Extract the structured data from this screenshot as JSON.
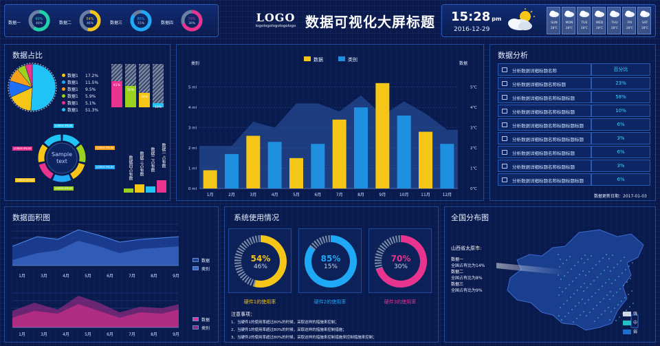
{
  "header": {
    "logo": "LOGO",
    "logo_sub": "logologologologologo",
    "title": "数据可视化大屏标题",
    "time": "15:28",
    "time_suffix": "pm",
    "date": "2016-12-29",
    "gauges": [
      {
        "label": "数据一",
        "pct": "60%",
        "sub": "40%",
        "color": "#1fd1a8"
      },
      {
        "label": "数据二",
        "pct": "54%",
        "sub": "46%",
        "color": "#f5c518"
      },
      {
        "label": "数据三",
        "pct": "85%",
        "sub": "15%",
        "color": "#1fa8f5"
      },
      {
        "label": "数据四",
        "pct": "70%",
        "sub": "30%",
        "color": "#e8338f"
      }
    ],
    "weather_days": [
      {
        "day": "SUN",
        "temp": "28°C"
      },
      {
        "day": "MON",
        "temp": "28°C"
      },
      {
        "day": "TUE",
        "temp": "28°C"
      },
      {
        "day": "WED",
        "temp": "28°C"
      },
      {
        "day": "THU",
        "temp": "28°C"
      },
      {
        "day": "FRI",
        "temp": "28°C"
      },
      {
        "day": "SAT",
        "temp": "28°C"
      }
    ]
  },
  "ratio_panel": {
    "title": "数据占比",
    "legend": [
      {
        "name": "数据1",
        "value": "17.2%",
        "color": "#f5c518"
      },
      {
        "name": "数据1",
        "value": "11.5%",
        "color": "#1fa8f5"
      },
      {
        "name": "数据1",
        "value": "9.5%",
        "color": "#f5a018"
      },
      {
        "name": "数据1",
        "value": "5.9%",
        "color": "#9ad21f"
      },
      {
        "name": "数据1",
        "value": "5.1%",
        "color": "#e8338f"
      },
      {
        "name": "数据1",
        "value": "51.3%",
        "color": "#1fc3f5"
      }
    ],
    "pie_slices": [
      {
        "value": 51.3,
        "color": "#1fc3f5"
      },
      {
        "value": 17.2,
        "color": "#f5c518"
      },
      {
        "value": 11.5,
        "color": "#1f6ff5"
      },
      {
        "value": 9.5,
        "color": "#f5a018"
      },
      {
        "value": 5.9,
        "color": "#9ad21f"
      },
      {
        "value": 5.1,
        "color": "#e8338f"
      }
    ],
    "bars": [
      {
        "label": "61%",
        "fill": 0.61,
        "color": "#e8338f"
      },
      {
        "label": "50%",
        "fill": 0.5,
        "color": "#9ad21f"
      },
      {
        "label": "34%",
        "fill": 0.34,
        "color": "#f5c518"
      },
      {
        "label": "10%",
        "fill": 0.1,
        "color": "#1fc3f5"
      }
    ],
    "ring_text": "Sample text",
    "ring_labels": [
      "LOREM IPSUM",
      "LOREM IPSUM",
      "LOREM IPSUM",
      "LOREM IPSUM",
      "LOREM IPSUM",
      "LOREM IPSUM",
      "LOREM IPSUM"
    ],
    "vbars": [
      {
        "label": "数据四占有数",
        "color": "#9ad21f"
      },
      {
        "label": "数据三占有数",
        "color": "#f5c518"
      },
      {
        "label": "数据二占有数",
        "color": "#1fc3f5"
      },
      {
        "label": "数据一占有数",
        "color": "#e8338f"
      }
    ]
  },
  "main_chart": {
    "left_axis_label": "类别",
    "right_axis_label": "数据",
    "legend": [
      {
        "name": "数据",
        "color": "#f5c518"
      },
      {
        "name": "类别",
        "color": "#1f8fe0"
      }
    ],
    "chart_data": {
      "type": "bar",
      "categories": [
        "1月",
        "2月",
        "3月",
        "4月",
        "5月",
        "6月",
        "7月",
        "8月",
        "9月",
        "10月",
        "11月",
        "12月"
      ],
      "series": [
        {
          "name": "数据",
          "values": [
            0.9,
            0,
            2.6,
            0,
            1.5,
            0,
            3.4,
            0,
            5.2,
            0,
            2.8,
            0
          ]
        },
        {
          "name": "类别",
          "values": [
            0,
            1.7,
            0,
            2.3,
            0,
            2.2,
            0,
            4.0,
            0,
            3.6,
            0,
            2.2
          ]
        }
      ],
      "area": [
        2.1,
        2.1,
        3.3,
        3.0,
        4.2,
        4.2,
        3.8,
        4.6,
        3.6,
        4.3,
        3.7,
        2.9
      ],
      "y_ticks_left": [
        "0 ml",
        "1 ml",
        "2 ml",
        "3 ml",
        "4 ml",
        "5 ml"
      ],
      "y_ticks_right": [
        "0℃",
        "1℃",
        "2℃",
        "3℃",
        "4℃",
        "5℃"
      ],
      "ylim": [
        0,
        5.5
      ]
    }
  },
  "analysis": {
    "title": "数据分析",
    "header_name": "分析数据详细标题名称",
    "header_pct": "百分比",
    "rows": [
      {
        "name": "分析数据详细标题名称标题",
        "pct": "23%"
      },
      {
        "name": "分析数据详细标题名称标题标题",
        "pct": "58%"
      },
      {
        "name": "分析数据详细标题名称标题标题",
        "pct": "10%"
      },
      {
        "name": "分析数据详细标题名称标题标题标题",
        "pct": "6%"
      },
      {
        "name": "分析数据详细标题名称标题标题标题",
        "pct": "3%"
      },
      {
        "name": "分析数据详细标题名称标题标题",
        "pct": "6%"
      },
      {
        "name": "分析数据详细标题名称标题标题",
        "pct": "3%"
      },
      {
        "name": "分析数据详细标题名称标题标题标题",
        "pct": "6%"
      }
    ],
    "update": "数据更新日期：2017-01-03"
  },
  "area_panel": {
    "title": "数据面积图",
    "months": [
      "1月",
      "3月",
      "4月",
      "5月",
      "6月",
      "7月",
      "8月",
      "9月"
    ],
    "legend_top": [
      "数据",
      "类别"
    ],
    "legend_bottom": [
      "数据",
      "类别"
    ]
  },
  "usage_panel": {
    "title": "系统使用情况",
    "cards": [
      {
        "pct": "54%",
        "sub": "46%",
        "fill": 0.54,
        "color": "#f5c518",
        "label": "硬件1的使用率"
      },
      {
        "pct": "85%",
        "sub": "15%",
        "fill": 0.85,
        "color": "#1fa8f5",
        "label": "硬件2的使用率"
      },
      {
        "pct": "70%",
        "sub": "30%",
        "fill": 0.7,
        "color": "#e8338f",
        "label": "硬件3的使用率"
      }
    ],
    "notes_title": "注意事项：",
    "notes": [
      "1、当硬件1的使用率超过80%的时候，采取这样的措施来控制；",
      "2、当硬件1的使用率超过80%的时候，采取这样的措施来控制措施；",
      "3、当硬件2的使用率超过80%的时候，采取这样的措施来控制措施来控制措施来控制；"
    ]
  },
  "map_panel": {
    "title": "全国分布图",
    "province": "山西省太原市:",
    "lines": [
      "数据一",
      "全国占有比为14%",
      "数据二",
      "全国占有比为8%",
      "数据三",
      "全国占有比为9%"
    ],
    "legend": [
      {
        "name": "强",
        "color": "#cfd8e6"
      },
      {
        "name": "中",
        "color": "#1fc3c3"
      },
      {
        "name": "弱",
        "color": "#1f6fd0"
      }
    ]
  }
}
